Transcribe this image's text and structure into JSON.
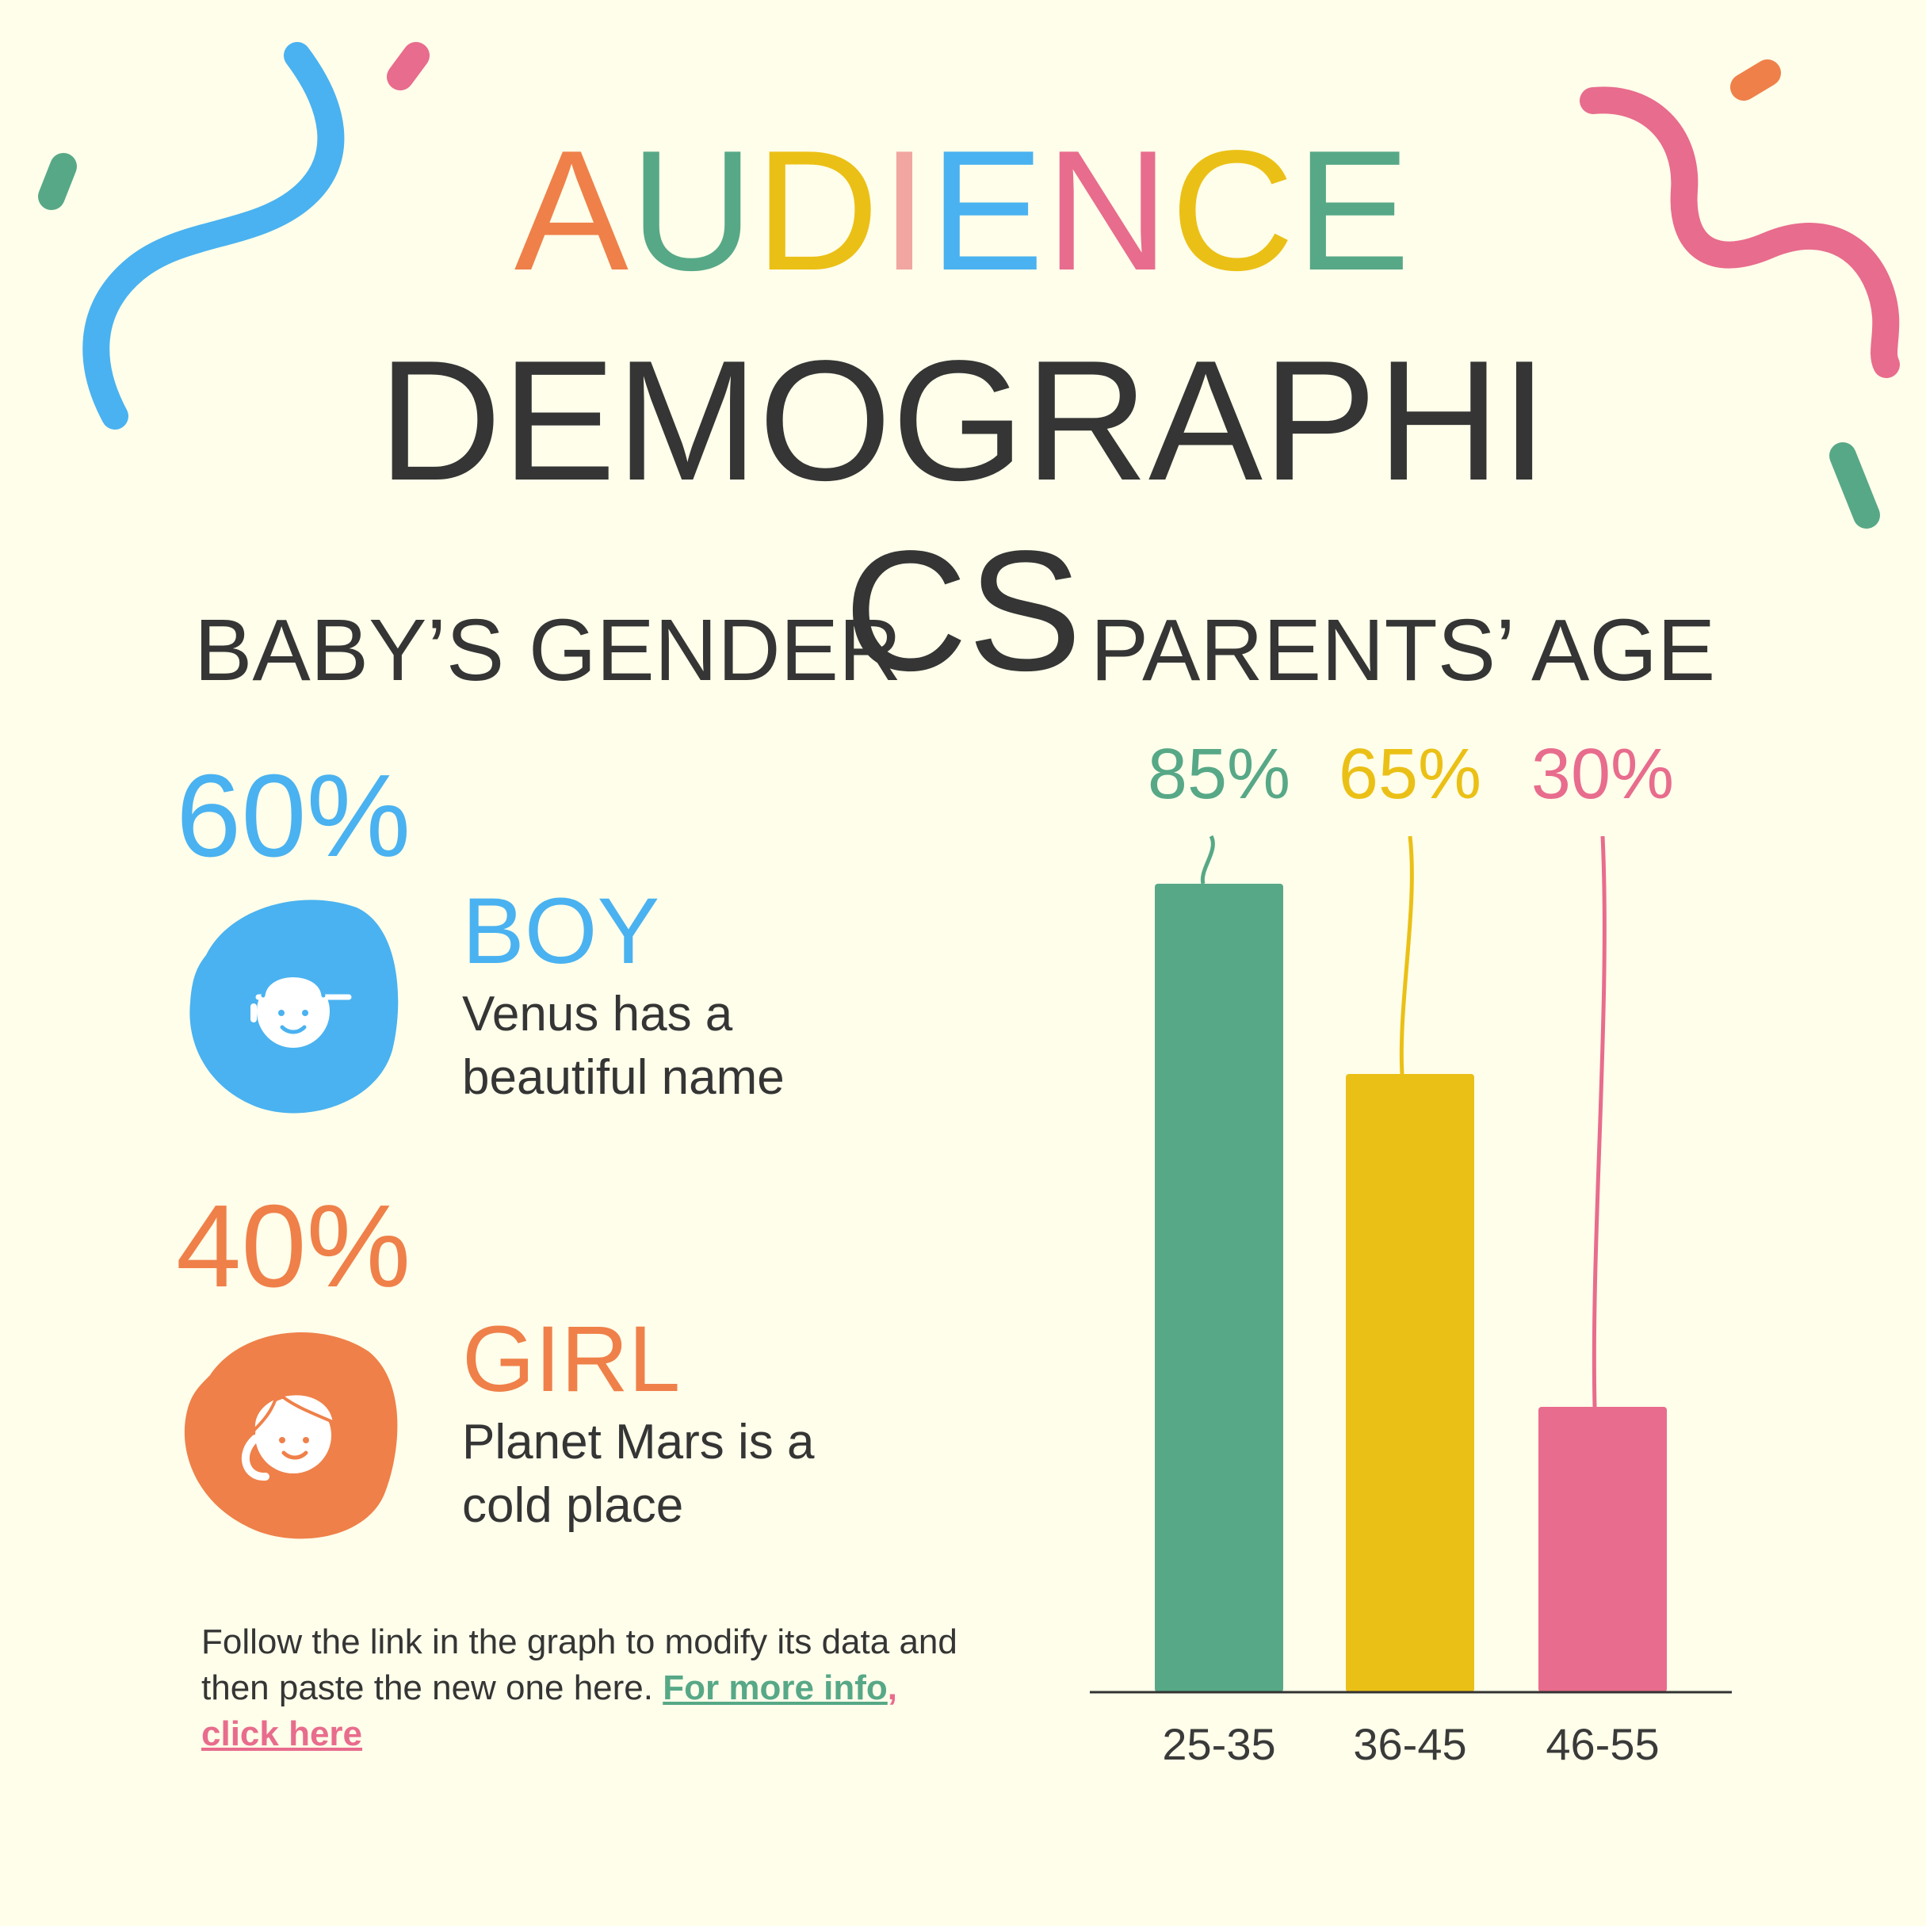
{
  "title": {
    "top_letters": [
      {
        "ch": "A",
        "color": "#ef8049"
      },
      {
        "ch": "U",
        "color": "#57a887"
      },
      {
        "ch": "D",
        "color": "#ebc016"
      },
      {
        "ch": "I",
        "color": "#f2a6a1"
      },
      {
        "ch": "E",
        "color": "#4ab2f0"
      },
      {
        "ch": "N",
        "color": "#e86c8d"
      },
      {
        "ch": "C",
        "color": "#ebc016"
      },
      {
        "ch": "E",
        "color": "#57a887"
      }
    ],
    "main": "DEMOGRAPHICS"
  },
  "gender": {
    "heading": "BABY’S GENDER",
    "boy": {
      "percent": "60%",
      "label": "BOY",
      "description": "Venus has a beautiful name",
      "color": "#4ab2f0",
      "icon": "boy-face-icon"
    },
    "girl": {
      "percent": "40%",
      "label": "GIRL",
      "description": "Planet Mars is a cold place",
      "color": "#ef8049",
      "icon": "girl-face-icon"
    }
  },
  "note": {
    "text": "Follow the link in the graph to modify its data and then paste the new one here.",
    "link_part1": "For more info",
    "link_part2": ", click here",
    "link_color1": "#57a887",
    "link_color2": "#e86c8d"
  },
  "parents_age": {
    "heading": "PARENTS’ AGE"
  },
  "chart_data": {
    "type": "bar",
    "title": "PARENTS’ AGE",
    "categories": [
      "25-35",
      "36-45",
      "46-55"
    ],
    "values": [
      85,
      65,
      30
    ],
    "value_labels": [
      "85%",
      "65%",
      "30%"
    ],
    "colors": [
      "#57a887",
      "#ebc016",
      "#e86c8d"
    ],
    "ylim": [
      0,
      100
    ],
    "grid": false,
    "xlabel": "",
    "ylabel": ""
  }
}
